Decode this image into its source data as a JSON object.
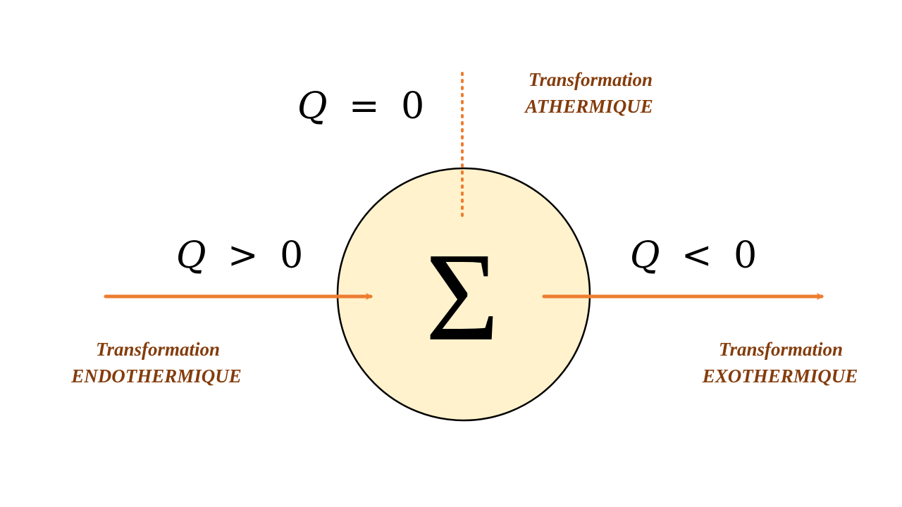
{
  "colors": {
    "arrow": "#ED7D31",
    "caption": "#843C0C",
    "system_fill": "#FFF2CC",
    "system_stroke": "#000000"
  },
  "system": {
    "symbol": "Σ"
  },
  "heat_in": {
    "variable": "Q",
    "relation": ">",
    "value": "0",
    "caption_line1": "Transformation",
    "caption_line2": "ENDOTHERMIQUE"
  },
  "heat_out": {
    "variable": "Q",
    "relation": "<",
    "value": "0",
    "caption_line1": "Transformation",
    "caption_line2": "EXOTHERMIQUE"
  },
  "heat_none": {
    "variable": "Q",
    "relation": "=",
    "value": "0",
    "caption_line1": "Transformation",
    "caption_line2": "ATHERMIQUE"
  }
}
